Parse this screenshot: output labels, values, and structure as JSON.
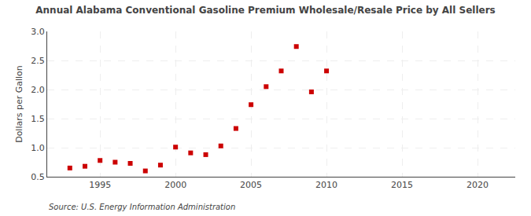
{
  "chart_data": {
    "type": "scatter",
    "title": "Annual Alabama Conventional Gasoline Premium Wholesale/Resale Price by All Sellers",
    "ylabel": "Dollars per Gallon",
    "annotations": [
      "Source: U.S. Energy Information Administration"
    ],
    "x": [
      1993,
      1994,
      1995,
      1996,
      1997,
      1998,
      1999,
      2000,
      2001,
      2002,
      2003,
      2004,
      2005,
      2006,
      2007,
      2008,
      2009,
      2010
    ],
    "values": [
      0.65,
      0.68,
      0.78,
      0.75,
      0.73,
      0.6,
      0.7,
      1.01,
      0.91,
      0.88,
      1.03,
      1.33,
      1.74,
      2.05,
      2.32,
      2.74,
      1.96,
      2.32
    ],
    "color": "#cc0000",
    "marker": "square",
    "xlim": [
      1991.5,
      2022.5
    ],
    "ylim": [
      0.5,
      3.0
    ],
    "xticks": [
      1995,
      2000,
      2005,
      2010,
      2015,
      2020
    ],
    "yticks": [
      0.5,
      {
        "value": 1.0,
        "label": "1.0"
      },
      1.5,
      {
        "value": 2.0,
        "label": "2.0"
      },
      2.5,
      {
        "value": 3.0,
        "label": "3.0"
      }
    ],
    "grid": true
  }
}
